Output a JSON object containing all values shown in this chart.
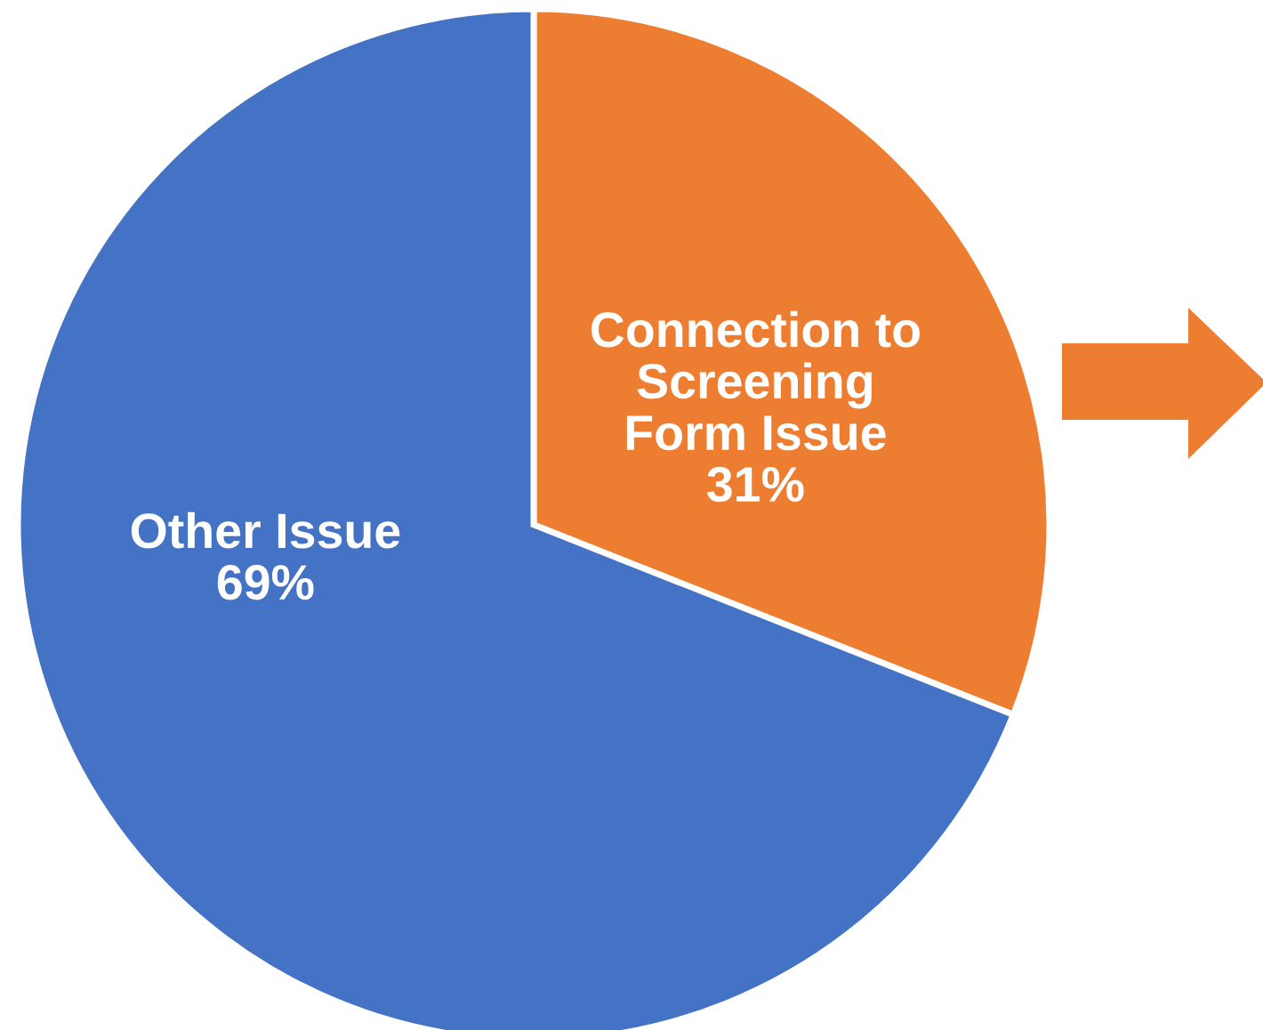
{
  "chart_data": {
    "type": "pie",
    "categories": [
      "Connection to\nScreening\nForm Issue",
      "Other Issue"
    ],
    "values": [
      31,
      69
    ],
    "colors": [
      "#ed7d31",
      "#4472c4"
    ],
    "value_labels": [
      "31%",
      "69%"
    ]
  }
}
